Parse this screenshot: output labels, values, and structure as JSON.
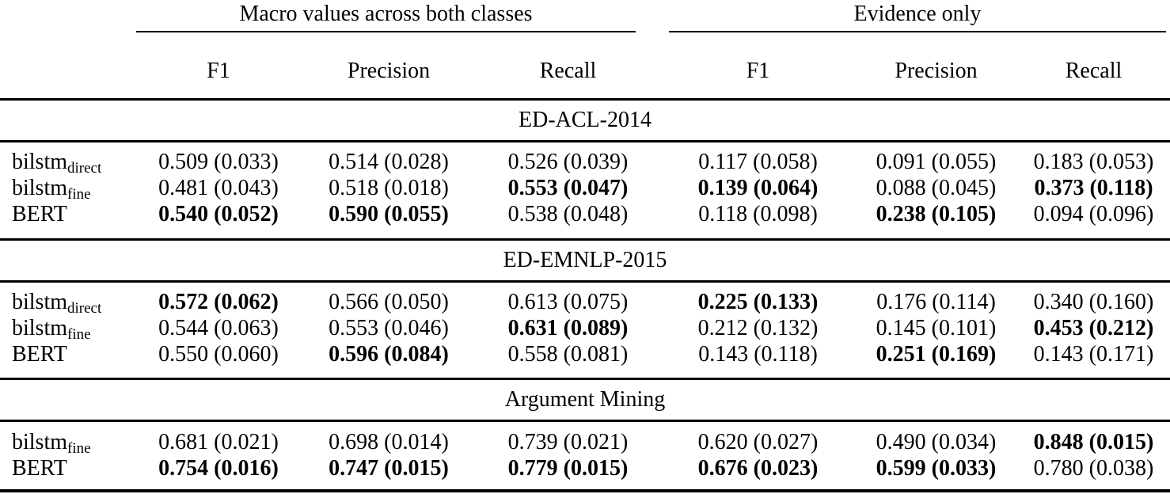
{
  "colors": {
    "text": "#000000",
    "background": "#ffffff",
    "rule": "#000000"
  },
  "table": {
    "groups": [
      {
        "label": "Macro values across both classes"
      },
      {
        "label": "Evidence only"
      }
    ],
    "columns": [
      "F1",
      "Precision",
      "Recall",
      "F1",
      "Precision",
      "Recall"
    ],
    "sections": [
      {
        "title": "ED-ACL-2014",
        "rows": [
          {
            "label": {
              "base": "bilstm",
              "sub": "direct"
            },
            "cells": [
              {
                "text": "0.509 (0.033)",
                "bold": false
              },
              {
                "text": "0.514 (0.028)",
                "bold": false
              },
              {
                "text": "0.526 (0.039)",
                "bold": false
              },
              {
                "text": "0.117 (0.058)",
                "bold": false
              },
              {
                "text": "0.091 (0.055)",
                "bold": false
              },
              {
                "text": "0.183 (0.053)",
                "bold": false
              }
            ]
          },
          {
            "label": {
              "base": "bilstm",
              "sub": "fine"
            },
            "cells": [
              {
                "text": "0.481 (0.043)",
                "bold": false
              },
              {
                "text": "0.518 (0.018)",
                "bold": false
              },
              {
                "text": "0.553 (0.047)",
                "bold": true
              },
              {
                "text": "0.139 (0.064)",
                "bold": true
              },
              {
                "text": "0.088 (0.045)",
                "bold": false
              },
              {
                "text": "0.373 (0.118)",
                "bold": true
              }
            ]
          },
          {
            "label": {
              "base": "BERT",
              "sub": ""
            },
            "cells": [
              {
                "text": "0.540 (0.052)",
                "bold": true
              },
              {
                "text": "0.590 (0.055)",
                "bold": true
              },
              {
                "text": "0.538 (0.048)",
                "bold": false
              },
              {
                "text": "0.118 (0.098)",
                "bold": false
              },
              {
                "text": "0.238 (0.105)",
                "bold": true
              },
              {
                "text": "0.094 (0.096)",
                "bold": false
              }
            ]
          }
        ]
      },
      {
        "title": "ED-EMNLP-2015",
        "rows": [
          {
            "label": {
              "base": "bilstm",
              "sub": "direct"
            },
            "cells": [
              {
                "text": "0.572 (0.062)",
                "bold": true
              },
              {
                "text": "0.566 (0.050)",
                "bold": false
              },
              {
                "text": "0.613 (0.075)",
                "bold": false
              },
              {
                "text": "0.225 (0.133)",
                "bold": true
              },
              {
                "text": "0.176 (0.114)",
                "bold": false
              },
              {
                "text": "0.340 (0.160)",
                "bold": false
              }
            ]
          },
          {
            "label": {
              "base": "bilstm",
              "sub": "fine"
            },
            "cells": [
              {
                "text": "0.544 (0.063)",
                "bold": false
              },
              {
                "text": "0.553 (0.046)",
                "bold": false
              },
              {
                "text": "0.631 (0.089)",
                "bold": true
              },
              {
                "text": "0.212 (0.132)",
                "bold": false
              },
              {
                "text": "0.145 (0.101)",
                "bold": false
              },
              {
                "text": "0.453 (0.212)",
                "bold": true
              }
            ]
          },
          {
            "label": {
              "base": "BERT",
              "sub": ""
            },
            "cells": [
              {
                "text": "0.550 (0.060)",
                "bold": false
              },
              {
                "text": "0.596 (0.084)",
                "bold": true
              },
              {
                "text": "0.558 (0.081)",
                "bold": false
              },
              {
                "text": "0.143 (0.118)",
                "bold": false
              },
              {
                "text": "0.251 (0.169)",
                "bold": true
              },
              {
                "text": "0.143 (0.171)",
                "bold": false
              }
            ]
          }
        ]
      },
      {
        "title": "Argument Mining",
        "rows": [
          {
            "label": {
              "base": "bilstm",
              "sub": "fine"
            },
            "cells": [
              {
                "text": "0.681 (0.021)",
                "bold": false
              },
              {
                "text": "0.698 (0.014)",
                "bold": false
              },
              {
                "text": "0.739 (0.021)",
                "bold": false
              },
              {
                "text": "0.620 (0.027)",
                "bold": false
              },
              {
                "text": "0.490 (0.034)",
                "bold": false
              },
              {
                "text": "0.848 (0.015)",
                "bold": true
              }
            ]
          },
          {
            "label": {
              "base": "BERT",
              "sub": ""
            },
            "cells": [
              {
                "text": "0.754 (0.016)",
                "bold": true
              },
              {
                "text": "0.747 (0.015)",
                "bold": true
              },
              {
                "text": "0.779 (0.015)",
                "bold": true
              },
              {
                "text": "0.676 (0.023)",
                "bold": true
              },
              {
                "text": "0.599 (0.033)",
                "bold": true
              },
              {
                "text": "0.780 (0.038)",
                "bold": false
              }
            ]
          }
        ]
      }
    ]
  }
}
